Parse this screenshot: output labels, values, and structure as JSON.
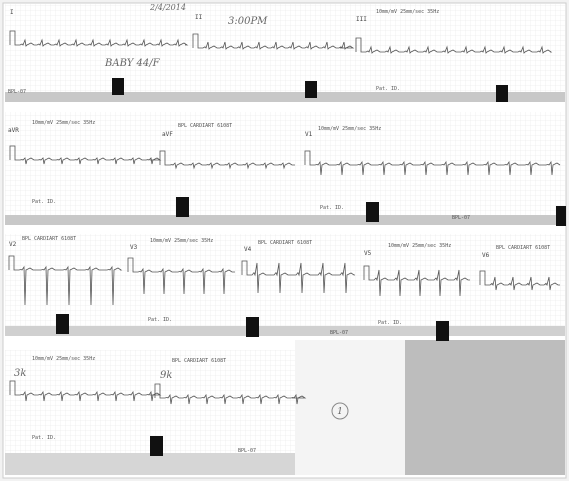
{
  "strip1": {
    "date": "2/4/2014",
    "time": "3:00PM",
    "patient": "BABY 44/F",
    "leads": [
      "I",
      "II",
      "III"
    ],
    "settings": "10mm/mV 25mm/sec 35Hz",
    "pat_id": "Pat. ID.",
    "device": "BPL-07"
  },
  "strip2": {
    "leads": [
      "aVR",
      "aVF",
      "V1"
    ],
    "settings": "10mm/mV 25mm/sec 35Hz",
    "model": "BPL CARDIART 6108T",
    "pat_id": "Pat. ID.",
    "device": "BPL-07"
  },
  "strip3": {
    "leads": [
      "V2",
      "V3",
      "V4",
      "V5",
      "V6"
    ],
    "settings": "10mm/mV 25mm/sec 35Hz",
    "model": "BPL CARDIART 6108T",
    "pat_id": "Pat. ID.",
    "device": "BPL-07"
  },
  "strip4": {
    "notes": [
      "3k",
      "9k"
    ],
    "settings": "10mm/mV 25mm/sec 35Hz",
    "model": "BPL CARDIART 6108T",
    "pat_id": "Pat. ID.",
    "device": "BPL-07"
  },
  "page_mark": "1"
}
